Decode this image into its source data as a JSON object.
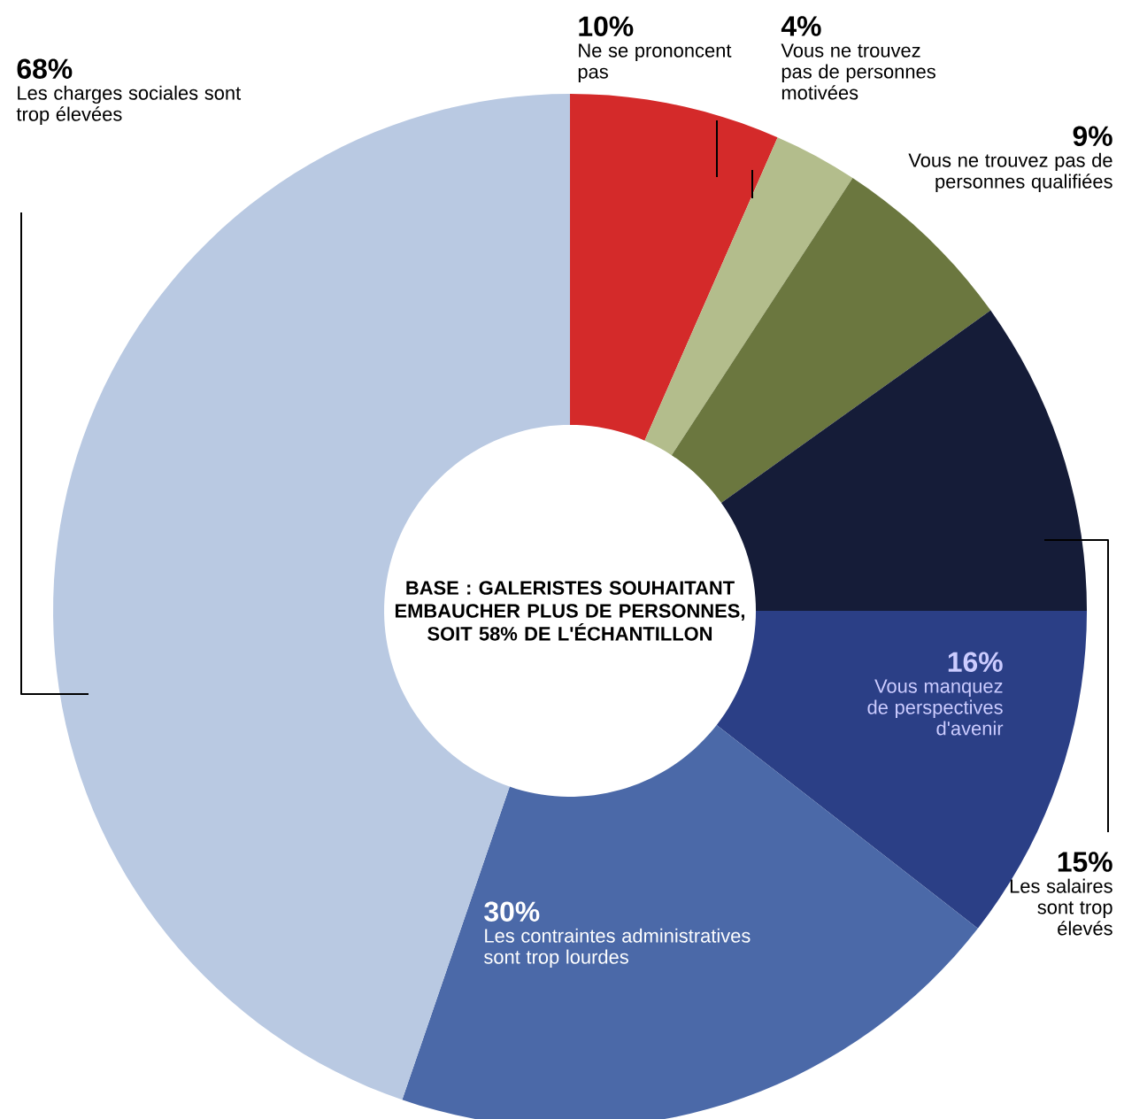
{
  "chart_data": {
    "type": "donut",
    "title": "BASE : GALERISTES SOUHAITANT EMBAUCHER PLUS DE PERSONNES, SOIT 58% DE L'ÉCHANTILLON",
    "categories": [
      "Ne se prononcent pas",
      "Vous ne trouvez pas de personnes motivées",
      "Vous ne trouvez pas de personnes qualifiées",
      "Les salaires sont trop élevés",
      "Vous manquez de perspectives d'avenir",
      "Les contraintes administratives sont trop lourdes",
      "Les charges sociales sont trop élevées"
    ],
    "values": [
      10,
      4,
      9,
      15,
      16,
      30,
      68
    ],
    "value_labels": [
      "10%",
      "4%",
      "9%",
      "15%",
      "16%",
      "30%",
      "68%"
    ],
    "colors": [
      "#d42a2a",
      "#b3bd8c",
      "#6b773f",
      "#151c38",
      "#2b3f86",
      "#4b69a8",
      "#b9c9e2"
    ]
  }
}
